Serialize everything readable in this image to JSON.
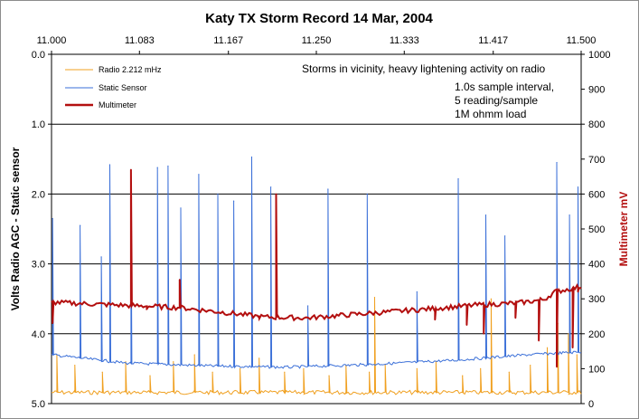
{
  "chart_data": {
    "type": "line",
    "title": "Katy TX Storm Record   14 Mar, 2004",
    "x_top_axis": {
      "ticks": [
        "11.000",
        "11.083",
        "11.167",
        "11.250",
        "11.333",
        "11.417",
        "11.500"
      ],
      "range": [
        11.0,
        11.5
      ]
    },
    "y_left_axis": {
      "label": "Volts  Radio AGC  -  Static sensor",
      "ticks": [
        "0.0",
        "1.0",
        "2.0",
        "3.0",
        "4.0",
        "5.0"
      ],
      "range": [
        0,
        5
      ],
      "inverted": true
    },
    "y_right_axis": {
      "label": "Multimeter  mV",
      "ticks": [
        "0",
        "100",
        "200",
        "300",
        "400",
        "500",
        "600",
        "700",
        "800",
        "900",
        "1000"
      ],
      "range": [
        0,
        1000
      ]
    },
    "grid": "horizontal at each left-axis volt",
    "legend_placement": "top-left",
    "series": [
      {
        "name": "Radio  2.212 mHz",
        "color": "#f0a020",
        "axis": "left",
        "baseline_volts": 4.84,
        "spikes": [
          {
            "x": 11.005,
            "y": 4.3
          },
          {
            "x": 11.022,
            "y": 4.45
          },
          {
            "x": 11.048,
            "y": 4.55
          },
          {
            "x": 11.07,
            "y": 4.4
          },
          {
            "x": 11.093,
            "y": 4.6
          },
          {
            "x": 11.115,
            "y": 4.4
          },
          {
            "x": 11.135,
            "y": 4.3
          },
          {
            "x": 11.152,
            "y": 4.55
          },
          {
            "x": 11.178,
            "y": 4.5
          },
          {
            "x": 11.196,
            "y": 4.35
          },
          {
            "x": 11.22,
            "y": 4.55
          },
          {
            "x": 11.238,
            "y": 4.5
          },
          {
            "x": 11.262,
            "y": 4.6
          },
          {
            "x": 11.278,
            "y": 4.45
          },
          {
            "x": 11.3,
            "y": 4.55
          },
          {
            "x": 11.305,
            "y": 3.48
          },
          {
            "x": 11.315,
            "y": 4.45
          },
          {
            "x": 11.345,
            "y": 4.5
          },
          {
            "x": 11.363,
            "y": 4.4
          },
          {
            "x": 11.388,
            "y": 4.6
          },
          {
            "x": 11.405,
            "y": 4.5
          },
          {
            "x": 11.415,
            "y": 3.5
          },
          {
            "x": 11.432,
            "y": 4.55
          },
          {
            "x": 11.452,
            "y": 4.45
          },
          {
            "x": 11.468,
            "y": 4.2
          },
          {
            "x": 11.478,
            "y": 3.85
          },
          {
            "x": 11.488,
            "y": 4.0
          },
          {
            "x": 11.496,
            "y": 4.3
          }
        ]
      },
      {
        "name": "Static Sensor",
        "color": "#3a6fd8",
        "axis": "left",
        "baseline": [
          {
            "x": 11.0,
            "y": 4.3
          },
          {
            "x": 11.07,
            "y": 4.42
          },
          {
            "x": 11.15,
            "y": 4.46
          },
          {
            "x": 11.22,
            "y": 4.48
          },
          {
            "x": 11.3,
            "y": 4.44
          },
          {
            "x": 11.38,
            "y": 4.38
          },
          {
            "x": 11.45,
            "y": 4.3
          },
          {
            "x": 11.5,
            "y": 4.26
          }
        ],
        "spikes": [
          {
            "x": 11.001,
            "y": 2.35
          },
          {
            "x": 11.027,
            "y": 2.45
          },
          {
            "x": 11.047,
            "y": 2.9
          },
          {
            "x": 11.055,
            "y": 1.58
          },
          {
            "x": 11.075,
            "y": 1.85
          },
          {
            "x": 11.1,
            "y": 1.62
          },
          {
            "x": 11.11,
            "y": 1.6
          },
          {
            "x": 11.122,
            "y": 2.2
          },
          {
            "x": 11.139,
            "y": 1.72
          },
          {
            "x": 11.157,
            "y": 2.0
          },
          {
            "x": 11.172,
            "y": 2.1
          },
          {
            "x": 11.189,
            "y": 1.47
          },
          {
            "x": 11.207,
            "y": 1.9
          },
          {
            "x": 11.242,
            "y": 3.6
          },
          {
            "x": 11.261,
            "y": 1.93
          },
          {
            "x": 11.298,
            "y": 2.0
          },
          {
            "x": 11.345,
            "y": 3.4
          },
          {
            "x": 11.384,
            "y": 1.78
          },
          {
            "x": 11.41,
            "y": 2.3
          },
          {
            "x": 11.428,
            "y": 2.6
          },
          {
            "x": 11.477,
            "y": 1.55
          },
          {
            "x": 11.489,
            "y": 2.3
          },
          {
            "x": 11.497,
            "y": 1.9
          }
        ]
      },
      {
        "name": "Multimeter",
        "color": "#b30f0f",
        "axis": "right",
        "baseline": [
          {
            "x": 11.0,
            "y": 290
          },
          {
            "x": 11.04,
            "y": 285
          },
          {
            "x": 11.08,
            "y": 280
          },
          {
            "x": 11.12,
            "y": 275
          },
          {
            "x": 11.16,
            "y": 262
          },
          {
            "x": 11.2,
            "y": 248
          },
          {
            "x": 11.24,
            "y": 245
          },
          {
            "x": 11.28,
            "y": 254
          },
          {
            "x": 11.32,
            "y": 263
          },
          {
            "x": 11.36,
            "y": 272
          },
          {
            "x": 11.4,
            "y": 282
          },
          {
            "x": 11.44,
            "y": 288
          },
          {
            "x": 11.465,
            "y": 298
          },
          {
            "x": 11.475,
            "y": 320
          },
          {
            "x": 11.5,
            "y": 335
          }
        ],
        "spikes": [
          {
            "x": 11.001,
            "y": 230
          },
          {
            "x": 11.075,
            "y": 670
          },
          {
            "x": 11.09,
            "y": 270
          },
          {
            "x": 11.121,
            "y": 355
          },
          {
            "x": 11.195,
            "y": 250
          },
          {
            "x": 11.212,
            "y": 600
          },
          {
            "x": 11.362,
            "y": 240
          },
          {
            "x": 11.392,
            "y": 225
          },
          {
            "x": 11.408,
            "y": 200
          },
          {
            "x": 11.438,
            "y": 245
          },
          {
            "x": 11.46,
            "y": 180
          },
          {
            "x": 11.477,
            "y": 105
          },
          {
            "x": 11.492,
            "y": 160
          },
          {
            "x": 11.497,
            "y": 320
          }
        ]
      }
    ],
    "annotations": {
      "line1": "Storms in vicinity, heavy lightening activity on radio",
      "line2": "1.0s sample interval,",
      "line3": "5 reading/sample",
      "line4": "1M ohmm load"
    }
  }
}
